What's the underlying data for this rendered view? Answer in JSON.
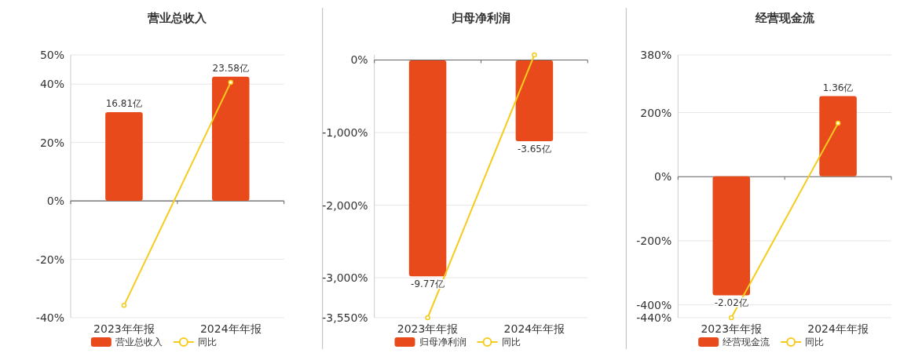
{
  "chart_data": [
    {
      "type": "bar",
      "title": "营业总收入",
      "categories": [
        "2023年年报",
        "2024年年报"
      ],
      "series": [
        {
          "name": "营业总收入",
          "axis": "y2",
          "color": "#e84a1b",
          "values": [
            16.81,
            23.58
          ],
          "value_labels": [
            "16.81亿",
            "23.58亿"
          ]
        },
        {
          "name": "同比",
          "type": "line",
          "color": "#f5cc1c",
          "values": [
            -35.8,
            40.6
          ]
        }
      ],
      "ylim": [
        -40,
        50
      ],
      "yticks": [
        {
          "value": 50,
          "label": "50%"
        },
        {
          "value": 40,
          "label": "40%"
        },
        {
          "value": 20,
          "label": "20%"
        },
        {
          "value": 0,
          "label": "0%"
        },
        {
          "value": -20,
          "label": "-20%"
        },
        {
          "value": -40,
          "label": "-40%"
        }
      ],
      "y2lim": [
        -22.2,
        27.7
      ],
      "grid": "y",
      "legend": "bottom",
      "marker": "circle"
    },
    {
      "type": "bar",
      "title": "归母净利润",
      "categories": [
        "2023年年报",
        "2024年年报"
      ],
      "series": [
        {
          "name": "归母净利润",
          "axis": "y2",
          "color": "#e84a1b",
          "values": [
            -9.77,
            -3.65
          ],
          "value_labels": [
            "-9.77亿",
            "-3.65亿"
          ]
        },
        {
          "name": "同比",
          "type": "line",
          "color": "#f5cc1c",
          "values": [
            -3550,
            70
          ]
        }
      ],
      "ylim": [
        -3550,
        70
      ],
      "yticks": [
        {
          "value": 0,
          "label": "0%"
        },
        {
          "value": -1000,
          "label": "-1,000%"
        },
        {
          "value": -2000,
          "label": "-2,000%"
        },
        {
          "value": -3000,
          "label": "-3,000%"
        },
        {
          "value": -3550,
          "label": "-3,550%"
        }
      ],
      "y2lim": [
        -11.64,
        0.25
      ],
      "grid": "y",
      "legend": "bottom",
      "marker": "circle"
    },
    {
      "type": "bar",
      "title": "经营现金流",
      "categories": [
        "2023年年报",
        "2024年年报"
      ],
      "series": [
        {
          "name": "经营现金流",
          "axis": "y2",
          "color": "#e84a1b",
          "values": [
            -2.02,
            1.36
          ],
          "value_labels": [
            "-2.02亿",
            "1.36亿"
          ]
        },
        {
          "name": "同比",
          "type": "line",
          "color": "#f5cc1c",
          "values": [
            -440,
            167
          ]
        }
      ],
      "ylim": [
        -440,
        380
      ],
      "yticks": [
        {
          "value": 380,
          "label": "380%"
        },
        {
          "value": 200,
          "label": "200%"
        },
        {
          "value": 0,
          "label": "0%"
        },
        {
          "value": -200,
          "label": "-200%"
        },
        {
          "value": -400,
          "label": "-400%"
        },
        {
          "value": -440,
          "label": "-440%"
        }
      ],
      "y2lim": [
        -2.4,
        2.06
      ],
      "grid": "y",
      "legend": "bottom",
      "marker": "circle"
    }
  ]
}
